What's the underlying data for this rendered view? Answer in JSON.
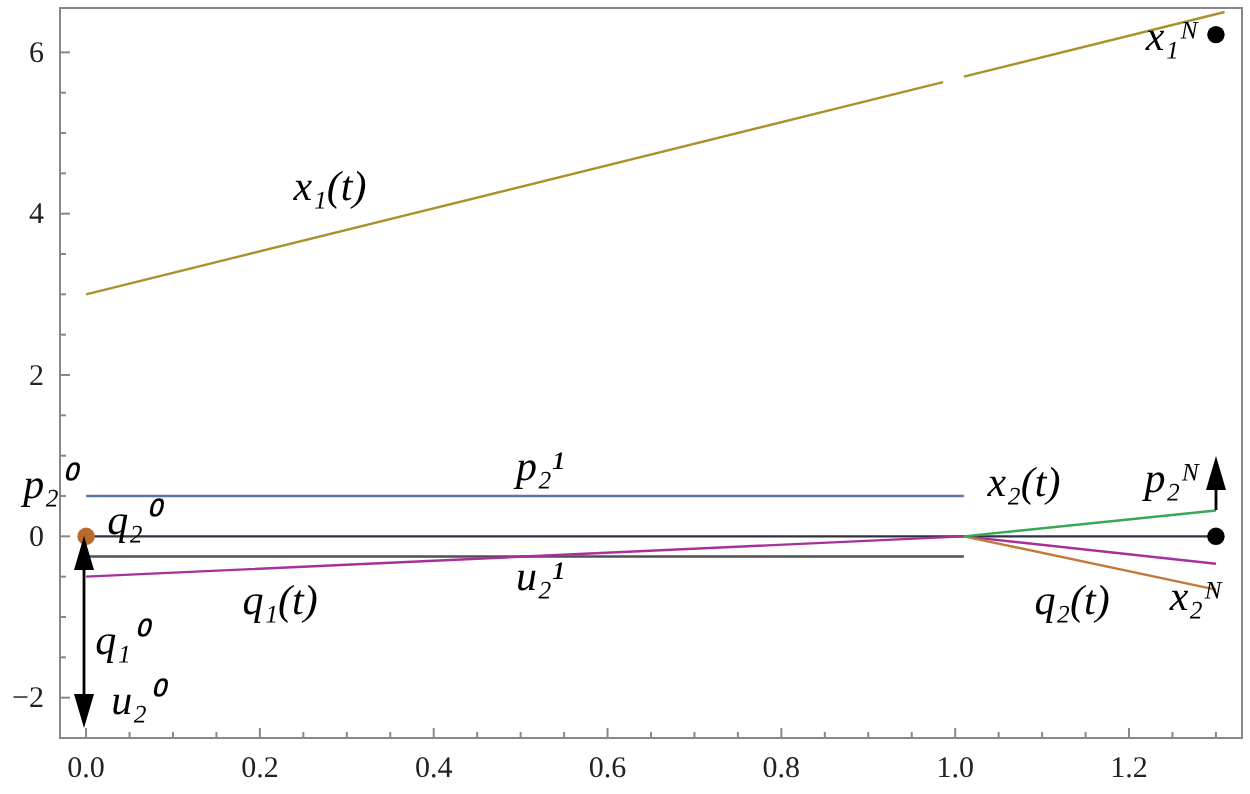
{
  "chart_data": {
    "type": "line",
    "xlim": [
      -0.03,
      1.33
    ],
    "ylim": [
      -2.5,
      6.55
    ],
    "xticks": [
      {
        "value": 0,
        "label": "0.0"
      },
      {
        "value": 0.05,
        "label": null
      },
      {
        "value": 0.1,
        "label": null
      },
      {
        "value": 0.15,
        "label": null
      },
      {
        "value": 0.2,
        "label": "0.2"
      },
      {
        "value": 0.25,
        "label": null
      },
      {
        "value": 0.3,
        "label": null
      },
      {
        "value": 0.35,
        "label": null
      },
      {
        "value": 0.4,
        "label": "0.4"
      },
      {
        "value": 0.45,
        "label": null
      },
      {
        "value": 0.5,
        "label": null
      },
      {
        "value": 0.55,
        "label": null
      },
      {
        "value": 0.6,
        "label": "0.6"
      },
      {
        "value": 0.65,
        "label": null
      },
      {
        "value": 0.7,
        "label": null
      },
      {
        "value": 0.75,
        "label": null
      },
      {
        "value": 0.8,
        "label": "0.8"
      },
      {
        "value": 0.85,
        "label": null
      },
      {
        "value": 0.9,
        "label": null
      },
      {
        "value": 0.95,
        "label": null
      },
      {
        "value": 1.0,
        "label": "1.0"
      },
      {
        "value": 1.05,
        "label": null
      },
      {
        "value": 1.1,
        "label": null
      },
      {
        "value": 1.15,
        "label": null
      },
      {
        "value": 1.2,
        "label": "1.2"
      },
      {
        "value": 1.25,
        "label": null
      },
      {
        "value": 1.3,
        "label": null
      }
    ],
    "yticks": [
      {
        "value": -2,
        "label": "−2"
      },
      {
        "value": -1.5,
        "label": null
      },
      {
        "value": -1,
        "label": null
      },
      {
        "value": -0.5,
        "label": null
      },
      0,
      {
        "value": 0.5,
        "label": null
      },
      {
        "value": 1,
        "label": null
      },
      {
        "value": 1.5,
        "label": null
      },
      2,
      {
        "value": 2.5,
        "label": null
      },
      {
        "value": 3,
        "label": null
      },
      {
        "value": 3.5,
        "label": null
      },
      4,
      {
        "value": 4.5,
        "label": null
      },
      {
        "value": 5,
        "label": null
      },
      {
        "value": 5.5,
        "label": null
      },
      6
    ],
    "grid": false,
    "line_style": "solid",
    "series": [
      {
        "color": "#a8922e",
        "x": [
          0,
          0.986,
          1.0,
          1.01,
          1.31
        ],
        "values": [
          3.0,
          5.63,
          null,
          5.7,
          6.5
        ]
      },
      {
        "color": "#5a76a8",
        "x": [
          0,
          1.01
        ],
        "values": [
          0.5,
          0.5
        ]
      },
      {
        "color": "#303040",
        "x": [
          0,
          1.3
        ],
        "values": [
          0,
          0
        ]
      },
      {
        "color": "#505050",
        "x": [
          0,
          1.01
        ],
        "values": [
          -0.25,
          -0.25
        ]
      },
      {
        "color": "#a8309a",
        "x": [
          0,
          1.01,
          1.3
        ],
        "values": [
          -0.5,
          0,
          -0.34
        ]
      },
      {
        "color": "#c0793a",
        "x": [
          1.01,
          1.3
        ],
        "values": [
          0,
          -0.66
        ]
      },
      {
        "color": "#38a858",
        "x": [
          1.01,
          1.3
        ],
        "values": [
          0,
          0.32
        ]
      },
      {
        "type": "scatter",
        "color": "#b86a2a",
        "x": [
          0
        ],
        "values": [
          0
        ],
        "marker": "circle"
      },
      {
        "type": "scatter",
        "color": "#000000",
        "x": [
          1.3,
          1.3
        ],
        "values": [
          0,
          6.22
        ],
        "marker": "circle"
      }
    ],
    "annotations": [
      "x₁(t)",
      "x₁ᴺ",
      "p₂¹",
      "u₂¹",
      "x₂(t)",
      "q₂(t)",
      "q₁(t)",
      "p₂⁰",
      "q₂⁰",
      "q₁⁰",
      "u₂⁰",
      "p₂ᴺ",
      "x₂ᴺ"
    ]
  }
}
